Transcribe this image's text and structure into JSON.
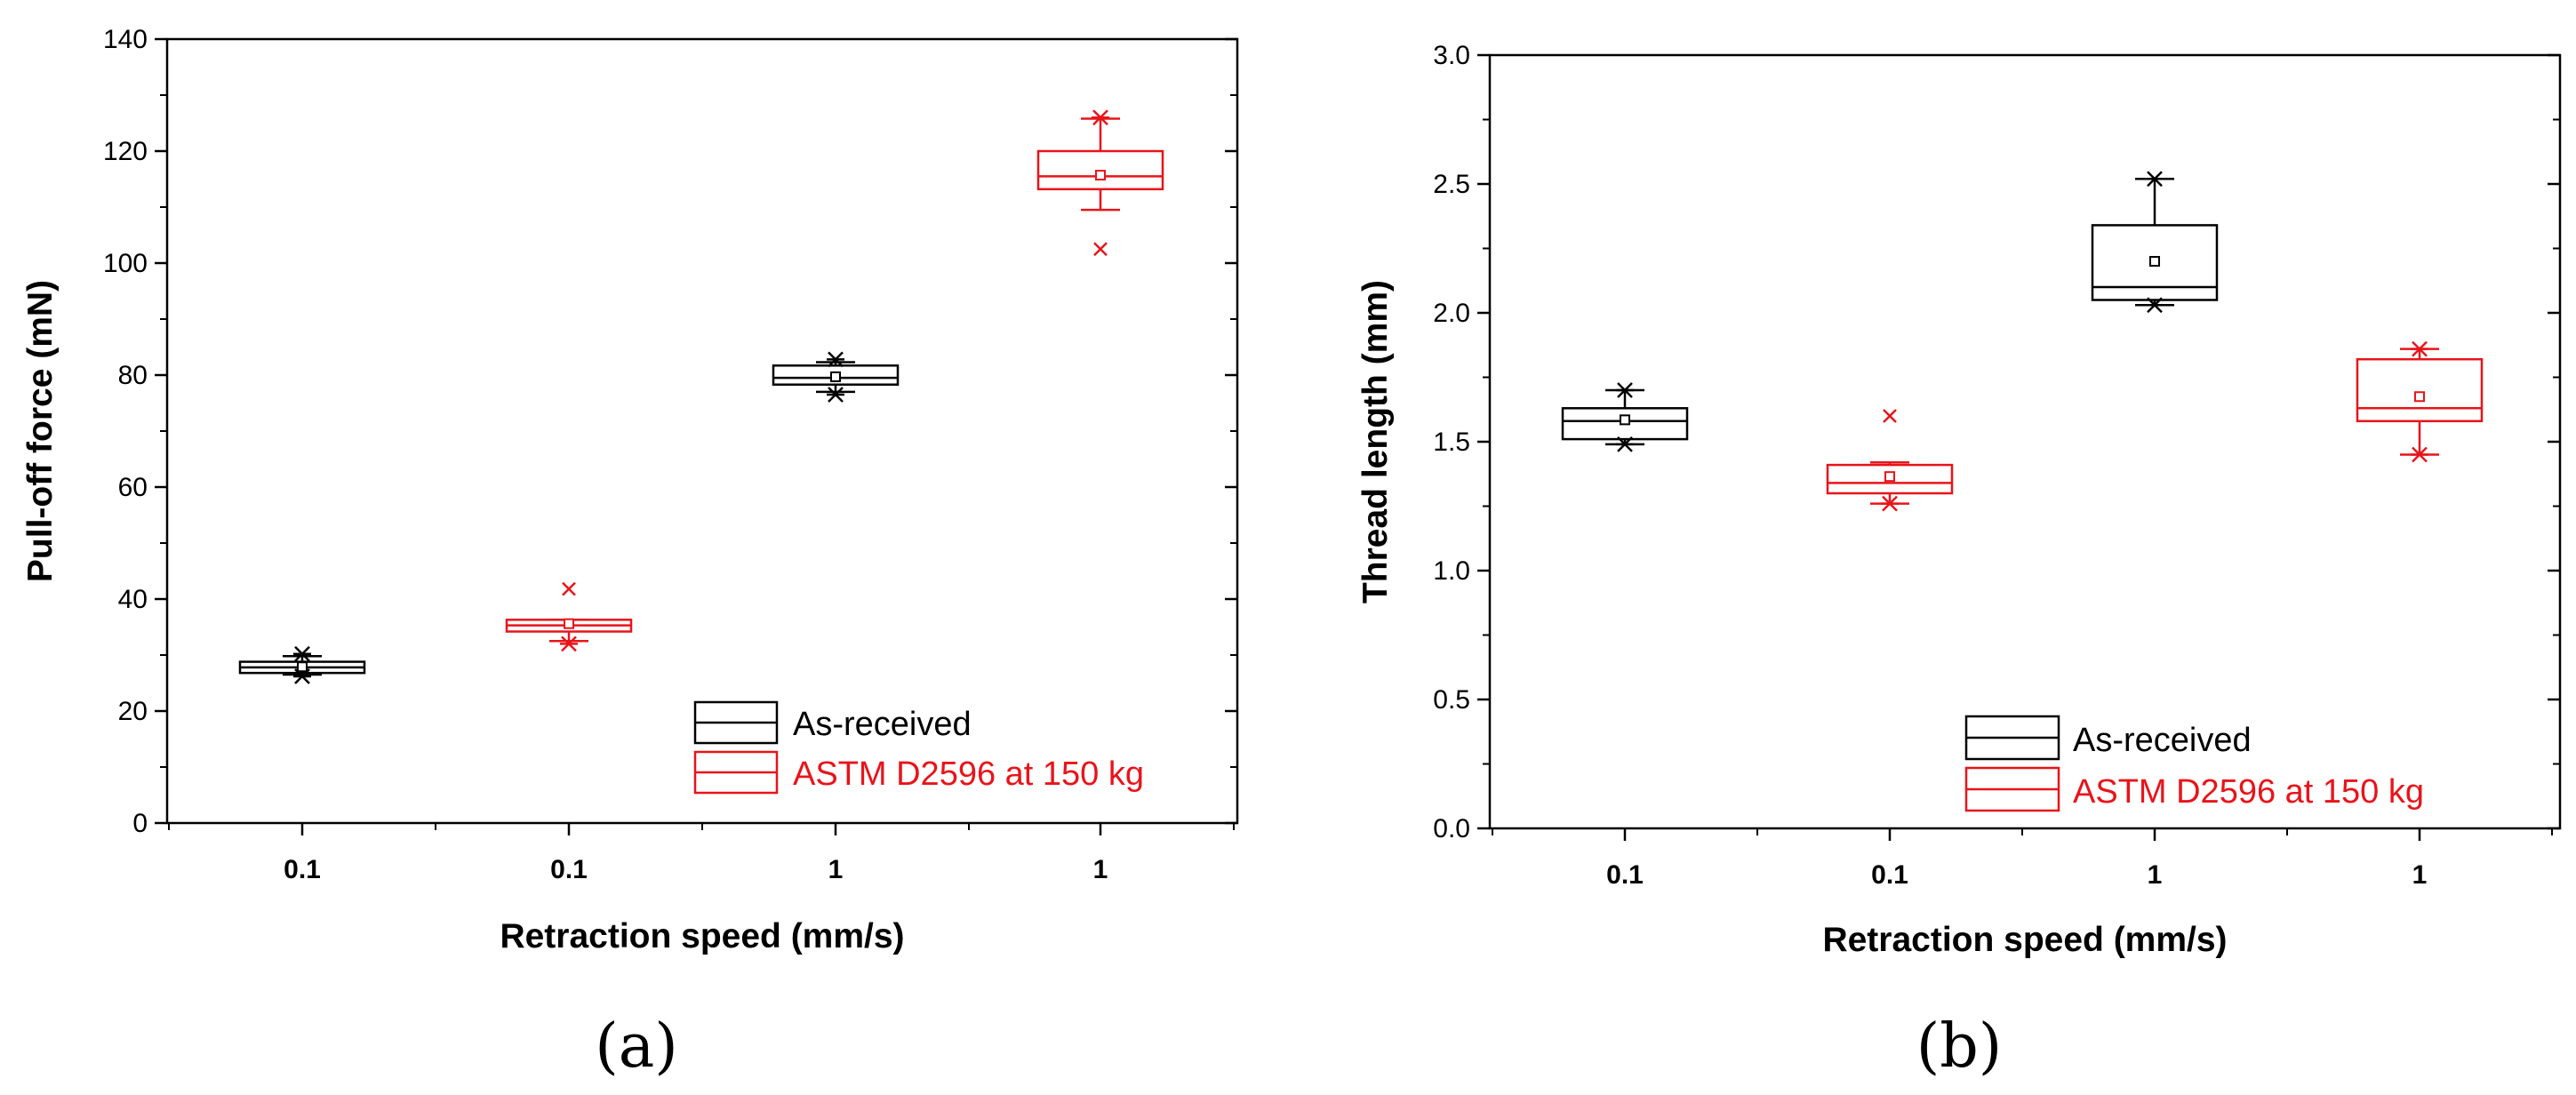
{
  "colors": {
    "as_received": "#000000",
    "astm": "#e8141a",
    "axis": "#000000"
  },
  "chart_data": [
    {
      "type": "box",
      "panel_label": "(a)",
      "xlabel": "Retraction speed (mm/s)",
      "ylabel": "Pull-off force (mN)",
      "ylim": [
        0,
        140
      ],
      "yticks": [
        0,
        20,
        40,
        60,
        80,
        100,
        120,
        140
      ],
      "yminor": [
        10,
        30,
        50,
        70,
        90,
        110,
        130
      ],
      "categories": [
        "0.1",
        "0.1",
        "1",
        "1"
      ],
      "legend": [
        {
          "name": "As-received",
          "series": "as_received"
        },
        {
          "name": "ASTM D2596 at 150 kg",
          "series": "astm"
        }
      ],
      "boxes": [
        {
          "category": "0.1",
          "series": "as_received",
          "q1": 26.8,
          "median": 27.8,
          "q3": 28.8,
          "mean": 27.9,
          "whisker_low": 26.5,
          "whisker_high": 29.8,
          "stars": [
            26.2,
            30.2
          ],
          "outliers": []
        },
        {
          "category": "0.1",
          "series": "astm",
          "q1": 34.2,
          "median": 35.3,
          "q3": 36.3,
          "mean": 35.6,
          "whisker_low": 32.5,
          "whisker_high": 36.3,
          "stars": [
            32.0
          ],
          "outliers": [
            41.8
          ]
        },
        {
          "category": "1",
          "series": "as_received",
          "q1": 78.3,
          "median": 79.5,
          "q3": 81.7,
          "mean": 79.7,
          "whisker_low": 77.0,
          "whisker_high": 82.3,
          "stars": [
            76.5,
            82.8
          ],
          "outliers": []
        },
        {
          "category": "1",
          "series": "astm",
          "q1": 113.2,
          "median": 115.5,
          "q3": 120.0,
          "mean": 115.7,
          "whisker_low": 109.5,
          "whisker_high": 125.8,
          "stars": [
            126.0
          ],
          "outliers": [
            102.5
          ]
        }
      ]
    },
    {
      "type": "box",
      "panel_label": "(b)",
      "xlabel": "Retraction speed (mm/s)",
      "ylabel": "Thread length (mm)",
      "ylim": [
        0,
        3.0
      ],
      "yticks": [
        "0.0",
        "0.5",
        "1.0",
        "1.5",
        "2.0",
        "2.5",
        "3.0"
      ],
      "yminor": [
        0.25,
        0.75,
        1.25,
        1.75,
        2.25,
        2.75
      ],
      "categories": [
        "0.1",
        "0.1",
        "1",
        "1"
      ],
      "legend": [
        {
          "name": "As-received",
          "series": "as_received"
        },
        {
          "name": "ASTM D2596 at 150 kg",
          "series": "astm"
        }
      ],
      "boxes": [
        {
          "category": "0.1",
          "series": "as_received",
          "q1": 1.51,
          "median": 1.58,
          "q3": 1.63,
          "mean": 1.585,
          "whisker_low": 1.49,
          "whisker_high": 1.7,
          "stars": [
            1.49,
            1.7
          ],
          "outliers": []
        },
        {
          "category": "0.1",
          "series": "astm",
          "q1": 1.3,
          "median": 1.34,
          "q3": 1.41,
          "mean": 1.365,
          "whisker_low": 1.26,
          "whisker_high": 1.42,
          "stars": [
            1.26
          ],
          "outliers": [
            1.6
          ]
        },
        {
          "category": "1",
          "series": "as_received",
          "q1": 2.05,
          "median": 2.1,
          "q3": 2.34,
          "mean": 2.2,
          "whisker_low": 2.03,
          "whisker_high": 2.52,
          "stars": [
            2.03,
            2.52
          ],
          "outliers": []
        },
        {
          "category": "1",
          "series": "astm",
          "q1": 1.58,
          "median": 1.63,
          "q3": 1.82,
          "mean": 1.675,
          "whisker_low": 1.45,
          "whisker_high": 1.86,
          "stars": [
            1.45,
            1.86
          ],
          "outliers": []
        }
      ]
    }
  ]
}
